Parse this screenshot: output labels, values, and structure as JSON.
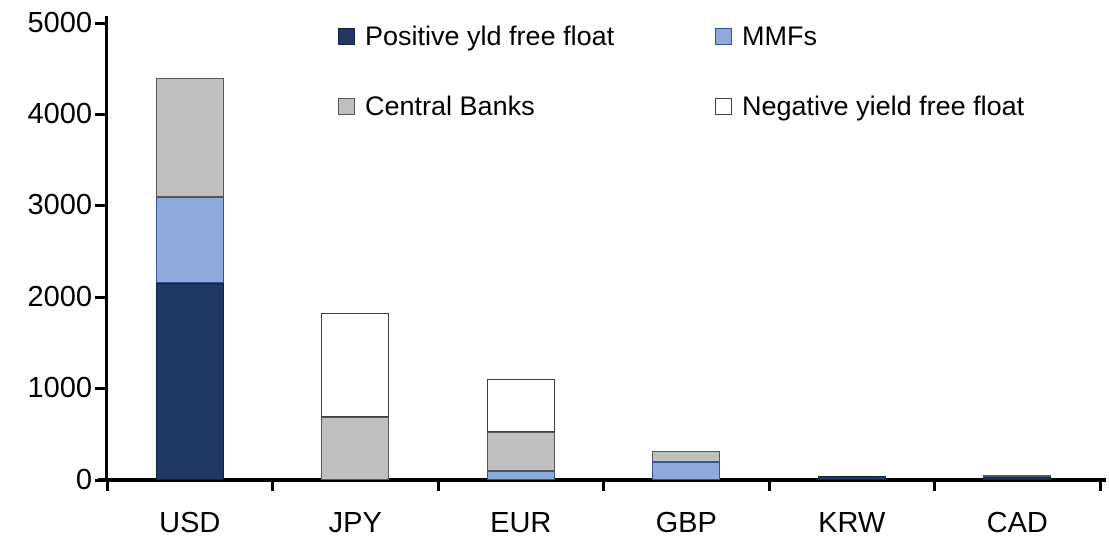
{
  "chart_data": {
    "type": "bar",
    "stacked": true,
    "title": "",
    "xlabel": "",
    "ylabel": "",
    "ylim": [
      0,
      5000
    ],
    "grid": false,
    "legend_position": "top",
    "ytick_labels": [
      "0",
      "1000",
      "2000",
      "3000",
      "4000",
      "5000"
    ],
    "categories": [
      "USD",
      "JPY",
      "EUR",
      "GBP",
      "KRW",
      "CAD"
    ],
    "series": [
      {
        "name": "Positive yld free float",
        "color": "#1F3864",
        "border_color": "#14223C",
        "values": [
          2150,
          0,
          0,
          0,
          40,
          30
        ]
      },
      {
        "name": "MMFs",
        "color": "#8EA9DB",
        "border_color": "#2F5597",
        "values": [
          950,
          0,
          100,
          200,
          0,
          0
        ]
      },
      {
        "name": "Central Banks",
        "color": "#BFBFBF",
        "border_color": "#595959",
        "values": [
          1300,
          690,
          420,
          120,
          0,
          30
        ]
      },
      {
        "name": "Negative yield free float",
        "color": "#FFFFFF",
        "border_color": "#404040",
        "values": [
          0,
          1140,
          580,
          0,
          0,
          0
        ]
      }
    ],
    "totals": [
      4400,
      1830,
      1100,
      320,
      40,
      60
    ]
  },
  "colors": {
    "axis": "#000000",
    "background": "#FFFFFF"
  }
}
